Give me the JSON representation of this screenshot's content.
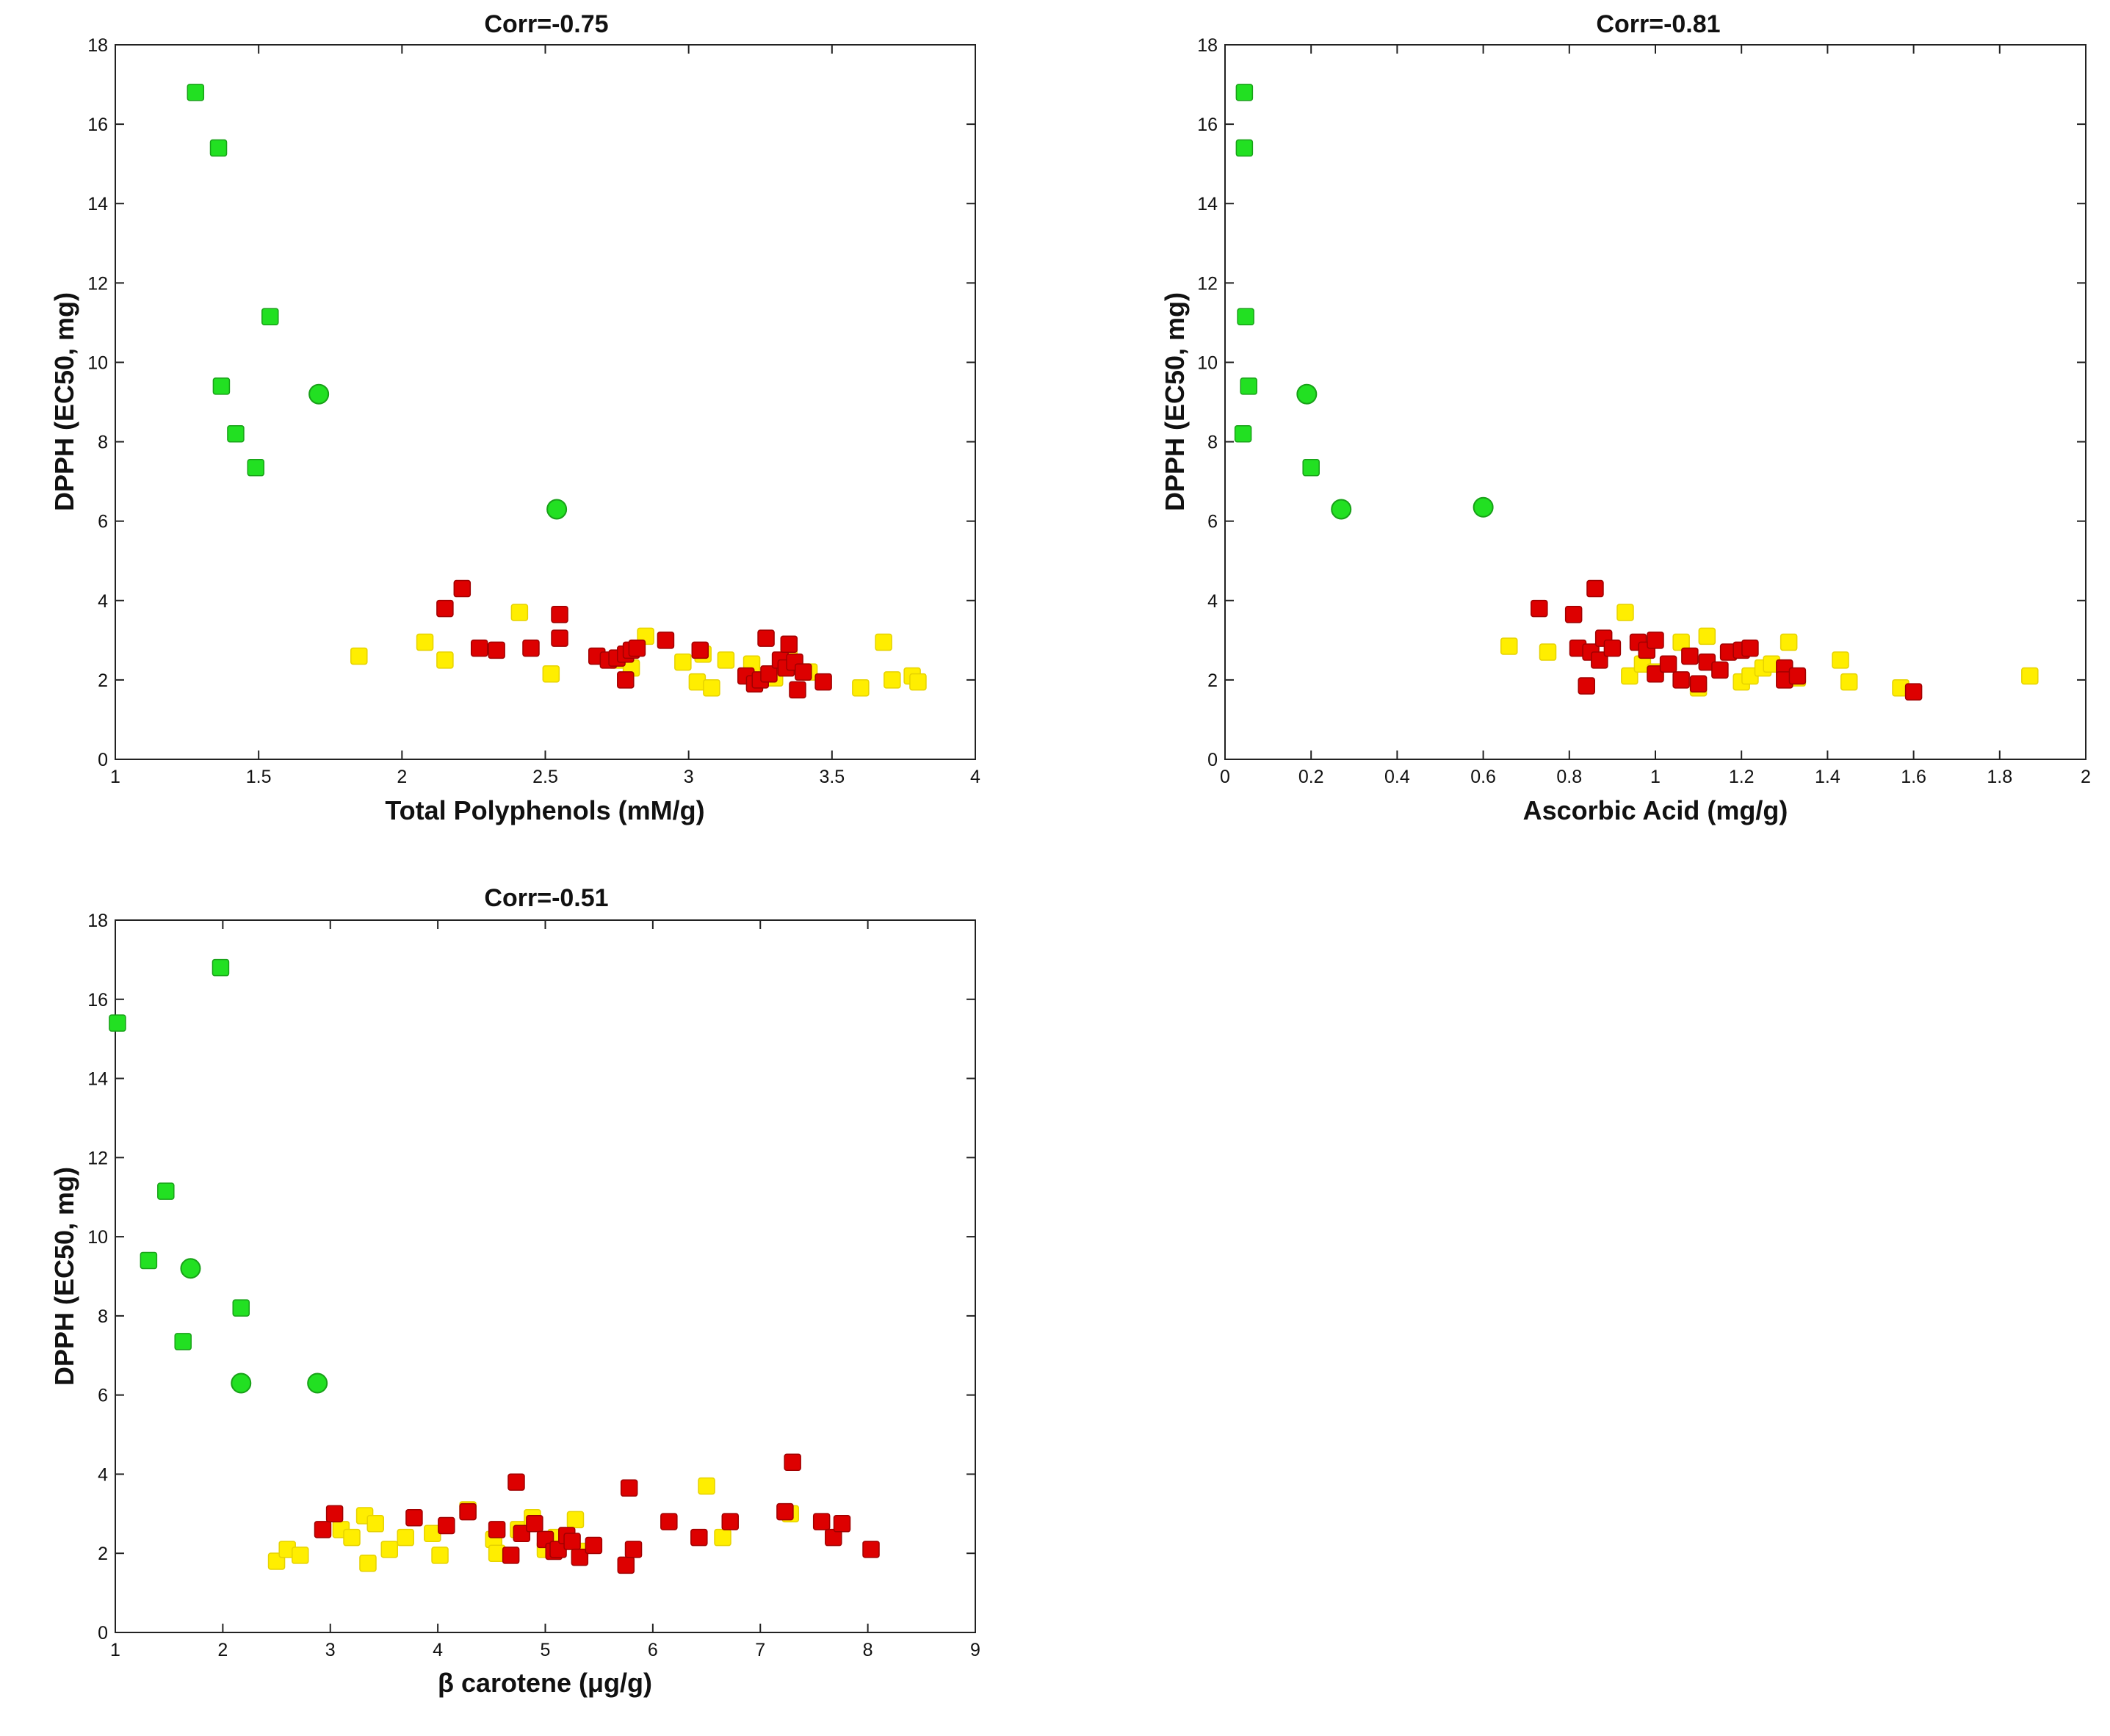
{
  "colors": {
    "green": "#22e022",
    "yellow": "#ffee00",
    "red": "#dd0000",
    "axis": "#222222",
    "background": "#ffffff"
  },
  "chart_data": [
    {
      "type": "scatter",
      "title": "Corr=-0.75",
      "xlabel": "Total Polyphenols (mM/g)",
      "ylabel": "DPPH (EC50, mg)",
      "xlim": [
        1,
        4
      ],
      "ylim": [
        0,
        18
      ],
      "xticks": [
        "1",
        "1.5",
        "2",
        "2.5",
        "3",
        "3.5",
        "4"
      ],
      "yticks": [
        "0",
        "2",
        "4",
        "6",
        "8",
        "10",
        "12",
        "14",
        "16",
        "18"
      ],
      "series": [
        {
          "name": "green squares",
          "color": "green",
          "marker": "square",
          "x": [
            1.28,
            1.36,
            1.54,
            1.37,
            1.42,
            1.49
          ],
          "y": [
            16.8,
            15.4,
            11.15,
            9.4,
            8.2,
            7.35
          ]
        },
        {
          "name": "green circles",
          "color": "green",
          "marker": "circle",
          "x": [
            1.71,
            2.54
          ],
          "y": [
            9.2,
            6.3
          ]
        },
        {
          "name": "yellow squares",
          "color": "yellow",
          "marker": "square",
          "x": [
            1.85,
            2.08,
            2.15,
            2.41,
            2.52,
            2.75,
            2.8,
            2.85,
            2.98,
            3.03,
            3.05,
            3.08,
            3.13,
            3.22,
            3.3,
            3.35,
            3.42,
            3.6,
            3.68,
            3.71,
            3.78,
            3.8
          ],
          "y": [
            2.6,
            2.95,
            2.5,
            3.7,
            2.15,
            2.5,
            2.3,
            3.1,
            2.45,
            1.95,
            2.65,
            1.8,
            2.5,
            2.4,
            2.05,
            2.6,
            2.2,
            1.8,
            2.95,
            2.0,
            2.1,
            1.95
          ]
        },
        {
          "name": "red squares",
          "color": "red",
          "marker": "square",
          "x": [
            2.15,
            2.21,
            2.27,
            2.33,
            2.45,
            2.55,
            2.55,
            2.68,
            2.72,
            2.75,
            2.78,
            2.8,
            2.82,
            2.78,
            2.92,
            3.04,
            3.2,
            3.23,
            3.25,
            3.27,
            3.28,
            3.32,
            3.34,
            3.35,
            3.37,
            3.38,
            3.4,
            3.47
          ],
          "y": [
            3.8,
            4.3,
            2.8,
            2.75,
            2.8,
            3.65,
            3.05,
            2.6,
            2.5,
            2.55,
            2.65,
            2.75,
            2.8,
            2.0,
            3.0,
            2.75,
            2.1,
            1.9,
            2.0,
            3.05,
            2.15,
            2.5,
            2.3,
            2.9,
            2.45,
            1.75,
            2.2,
            1.95
          ]
        }
      ]
    },
    {
      "type": "scatter",
      "title": "Corr=-0.81",
      "xlabel": "Ascorbic Acid (mg/g)",
      "ylabel": "DPPH (EC50, mg)",
      "xlim": [
        0,
        2
      ],
      "ylim": [
        0,
        18
      ],
      "xticks": [
        "0",
        "0.2",
        "0.4",
        "0.6",
        "0.8",
        "1",
        "1.2",
        "1.4",
        "1.6",
        "1.8",
        "2"
      ],
      "yticks": [
        "0",
        "2",
        "4",
        "6",
        "8",
        "10",
        "12",
        "14",
        "16",
        "18"
      ],
      "series": [
        {
          "name": "green squares",
          "color": "green",
          "marker": "square",
          "x": [
            0.045,
            0.045,
            0.048,
            0.055,
            0.042,
            0.2
          ],
          "y": [
            16.8,
            15.4,
            11.15,
            9.4,
            8.2,
            7.35
          ]
        },
        {
          "name": "green circles",
          "color": "green",
          "marker": "circle",
          "x": [
            0.19,
            0.27,
            0.6
          ],
          "y": [
            9.2,
            6.3,
            6.35
          ]
        },
        {
          "name": "yellow squares",
          "color": "yellow",
          "marker": "square",
          "x": [
            0.66,
            0.75,
            0.93,
            0.94,
            0.97,
            1.0,
            1.06,
            1.1,
            1.12,
            1.2,
            1.22,
            1.25,
            1.27,
            1.31,
            1.33,
            1.43,
            1.45,
            1.57,
            1.87
          ],
          "y": [
            2.85,
            2.7,
            3.7,
            2.1,
            2.4,
            2.2,
            2.95,
            1.8,
            3.1,
            1.95,
            2.1,
            2.3,
            2.4,
            2.95,
            2.05,
            2.5,
            1.95,
            1.8,
            2.1
          ]
        },
        {
          "name": "red squares",
          "color": "red",
          "marker": "square",
          "x": [
            0.73,
            0.81,
            0.82,
            0.84,
            0.85,
            0.86,
            0.87,
            0.88,
            0.9,
            0.96,
            0.98,
            1.0,
            1.0,
            1.03,
            1.06,
            1.08,
            1.1,
            1.12,
            1.15,
            1.17,
            1.2,
            1.22,
            1.3,
            1.3,
            1.33,
            1.6
          ],
          "y": [
            3.8,
            3.65,
            2.8,
            1.85,
            2.7,
            4.3,
            2.5,
            3.05,
            2.8,
            2.95,
            2.75,
            2.15,
            3.0,
            2.4,
            2.0,
            2.6,
            1.9,
            2.45,
            2.25,
            2.7,
            2.75,
            2.8,
            2.3,
            2.0,
            2.1,
            1.7
          ]
        }
      ]
    },
    {
      "type": "scatter",
      "title": "Corr=-0.51",
      "xlabel": "β carotene (μg/g)",
      "ylabel": "DPPH (EC50, mg)",
      "xlim": [
        1,
        9
      ],
      "ylim": [
        0,
        18
      ],
      "xticks": [
        "1",
        "2",
        "3",
        "4",
        "5",
        "6",
        "7",
        "8",
        "9"
      ],
      "yticks": [
        "0",
        "2",
        "4",
        "6",
        "8",
        "10",
        "12",
        "14",
        "16",
        "18"
      ],
      "series": [
        {
          "name": "green squares",
          "color": "green",
          "marker": "square",
          "x": [
            1.98,
            1.02,
            1.47,
            1.31,
            2.17,
            1.63
          ],
          "y": [
            16.8,
            15.4,
            11.15,
            9.4,
            8.2,
            7.35
          ]
        },
        {
          "name": "green circles",
          "color": "green",
          "marker": "circle",
          "x": [
            1.7,
            2.17,
            2.88
          ],
          "y": [
            9.2,
            6.3,
            6.3
          ]
        },
        {
          "name": "yellow squares",
          "color": "yellow",
          "marker": "square",
          "x": [
            2.5,
            2.6,
            2.72,
            3.1,
            3.2,
            3.32,
            3.35,
            3.42,
            3.55,
            3.7,
            3.95,
            4.02,
            4.28,
            4.52,
            4.55,
            4.75,
            4.88,
            5.0,
            5.1,
            5.28,
            5.32,
            6.5,
            6.65,
            7.28
          ],
          "y": [
            1.8,
            2.1,
            1.95,
            2.6,
            2.4,
            2.95,
            1.75,
            2.75,
            2.1,
            2.4,
            2.5,
            1.95,
            3.1,
            2.35,
            2.0,
            2.6,
            2.9,
            2.1,
            2.4,
            2.85,
            2.05,
            3.7,
            2.4,
            3.0
          ]
        },
        {
          "name": "red squares",
          "color": "red",
          "marker": "square",
          "x": [
            2.93,
            3.04,
            3.78,
            4.08,
            4.28,
            4.55,
            4.68,
            4.73,
            4.78,
            4.9,
            5.0,
            5.08,
            5.12,
            5.2,
            5.25,
            5.32,
            5.45,
            5.75,
            5.78,
            5.82,
            6.15,
            6.43,
            6.72,
            7.23,
            7.3,
            7.57,
            7.68,
            7.76,
            8.03
          ],
          "y": [
            2.6,
            3.0,
            2.9,
            2.7,
            3.05,
            2.6,
            1.95,
            3.8,
            2.5,
            2.75,
            2.35,
            2.05,
            2.1,
            2.45,
            2.3,
            1.9,
            2.2,
            1.7,
            3.65,
            2.1,
            2.8,
            2.4,
            2.8,
            3.05,
            4.3,
            2.8,
            2.4,
            2.75,
            2.1
          ]
        }
      ]
    }
  ]
}
